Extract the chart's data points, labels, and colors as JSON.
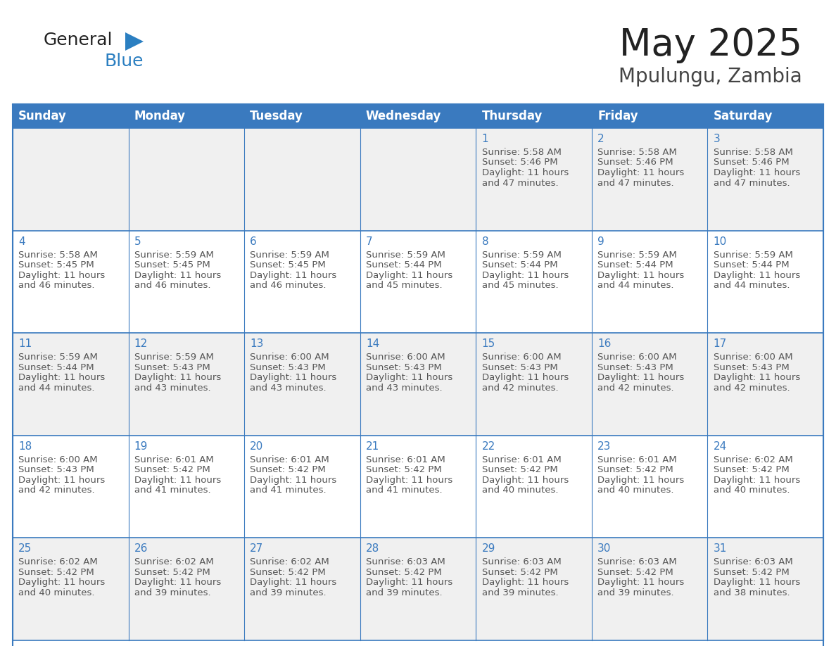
{
  "title": "May 2025",
  "subtitle": "Mpulungu, Zambia",
  "header_bg": "#3a7abf",
  "header_text_color": "#ffffff",
  "cell_bg_light": "#f0f0f0",
  "cell_bg_white": "#ffffff",
  "day_number_color": "#3a7abf",
  "cell_text_color": "#555555",
  "border_color": "#3a7abf",
  "days_of_week": [
    "Sunday",
    "Monday",
    "Tuesday",
    "Wednesday",
    "Thursday",
    "Friday",
    "Saturday"
  ],
  "calendar_data": [
    [
      null,
      null,
      null,
      null,
      {
        "day": 1,
        "sunrise": "5:58 AM",
        "sunset": "5:46 PM",
        "daylight": "11 hours",
        "daylight2": "and 47 minutes."
      },
      {
        "day": 2,
        "sunrise": "5:58 AM",
        "sunset": "5:46 PM",
        "daylight": "11 hours",
        "daylight2": "and 47 minutes."
      },
      {
        "day": 3,
        "sunrise": "5:58 AM",
        "sunset": "5:46 PM",
        "daylight": "11 hours",
        "daylight2": "and 47 minutes."
      }
    ],
    [
      {
        "day": 4,
        "sunrise": "5:58 AM",
        "sunset": "5:45 PM",
        "daylight": "11 hours",
        "daylight2": "and 46 minutes."
      },
      {
        "day": 5,
        "sunrise": "5:59 AM",
        "sunset": "5:45 PM",
        "daylight": "11 hours",
        "daylight2": "and 46 minutes."
      },
      {
        "day": 6,
        "sunrise": "5:59 AM",
        "sunset": "5:45 PM",
        "daylight": "11 hours",
        "daylight2": "and 46 minutes."
      },
      {
        "day": 7,
        "sunrise": "5:59 AM",
        "sunset": "5:44 PM",
        "daylight": "11 hours",
        "daylight2": "and 45 minutes."
      },
      {
        "day": 8,
        "sunrise": "5:59 AM",
        "sunset": "5:44 PM",
        "daylight": "11 hours",
        "daylight2": "and 45 minutes."
      },
      {
        "day": 9,
        "sunrise": "5:59 AM",
        "sunset": "5:44 PM",
        "daylight": "11 hours",
        "daylight2": "and 44 minutes."
      },
      {
        "day": 10,
        "sunrise": "5:59 AM",
        "sunset": "5:44 PM",
        "daylight": "11 hours",
        "daylight2": "and 44 minutes."
      }
    ],
    [
      {
        "day": 11,
        "sunrise": "5:59 AM",
        "sunset": "5:44 PM",
        "daylight": "11 hours",
        "daylight2": "and 44 minutes."
      },
      {
        "day": 12,
        "sunrise": "5:59 AM",
        "sunset": "5:43 PM",
        "daylight": "11 hours",
        "daylight2": "and 43 minutes."
      },
      {
        "day": 13,
        "sunrise": "6:00 AM",
        "sunset": "5:43 PM",
        "daylight": "11 hours",
        "daylight2": "and 43 minutes."
      },
      {
        "day": 14,
        "sunrise": "6:00 AM",
        "sunset": "5:43 PM",
        "daylight": "11 hours",
        "daylight2": "and 43 minutes."
      },
      {
        "day": 15,
        "sunrise": "6:00 AM",
        "sunset": "5:43 PM",
        "daylight": "11 hours",
        "daylight2": "and 42 minutes."
      },
      {
        "day": 16,
        "sunrise": "6:00 AM",
        "sunset": "5:43 PM",
        "daylight": "11 hours",
        "daylight2": "and 42 minutes."
      },
      {
        "day": 17,
        "sunrise": "6:00 AM",
        "sunset": "5:43 PM",
        "daylight": "11 hours",
        "daylight2": "and 42 minutes."
      }
    ],
    [
      {
        "day": 18,
        "sunrise": "6:00 AM",
        "sunset": "5:43 PM",
        "daylight": "11 hours",
        "daylight2": "and 42 minutes."
      },
      {
        "day": 19,
        "sunrise": "6:01 AM",
        "sunset": "5:42 PM",
        "daylight": "11 hours",
        "daylight2": "and 41 minutes."
      },
      {
        "day": 20,
        "sunrise": "6:01 AM",
        "sunset": "5:42 PM",
        "daylight": "11 hours",
        "daylight2": "and 41 minutes."
      },
      {
        "day": 21,
        "sunrise": "6:01 AM",
        "sunset": "5:42 PM",
        "daylight": "11 hours",
        "daylight2": "and 41 minutes."
      },
      {
        "day": 22,
        "sunrise": "6:01 AM",
        "sunset": "5:42 PM",
        "daylight": "11 hours",
        "daylight2": "and 40 minutes."
      },
      {
        "day": 23,
        "sunrise": "6:01 AM",
        "sunset": "5:42 PM",
        "daylight": "11 hours",
        "daylight2": "and 40 minutes."
      },
      {
        "day": 24,
        "sunrise": "6:02 AM",
        "sunset": "5:42 PM",
        "daylight": "11 hours",
        "daylight2": "and 40 minutes."
      }
    ],
    [
      {
        "day": 25,
        "sunrise": "6:02 AM",
        "sunset": "5:42 PM",
        "daylight": "11 hours",
        "daylight2": "and 40 minutes."
      },
      {
        "day": 26,
        "sunrise": "6:02 AM",
        "sunset": "5:42 PM",
        "daylight": "11 hours",
        "daylight2": "and 39 minutes."
      },
      {
        "day": 27,
        "sunrise": "6:02 AM",
        "sunset": "5:42 PM",
        "daylight": "11 hours",
        "daylight2": "and 39 minutes."
      },
      {
        "day": 28,
        "sunrise": "6:03 AM",
        "sunset": "5:42 PM",
        "daylight": "11 hours",
        "daylight2": "and 39 minutes."
      },
      {
        "day": 29,
        "sunrise": "6:03 AM",
        "sunset": "5:42 PM",
        "daylight": "11 hours",
        "daylight2": "and 39 minutes."
      },
      {
        "day": 30,
        "sunrise": "6:03 AM",
        "sunset": "5:42 PM",
        "daylight": "11 hours",
        "daylight2": "and 39 minutes."
      },
      {
        "day": 31,
        "sunrise": "6:03 AM",
        "sunset": "5:42 PM",
        "daylight": "11 hours",
        "daylight2": "and 38 minutes."
      }
    ]
  ]
}
